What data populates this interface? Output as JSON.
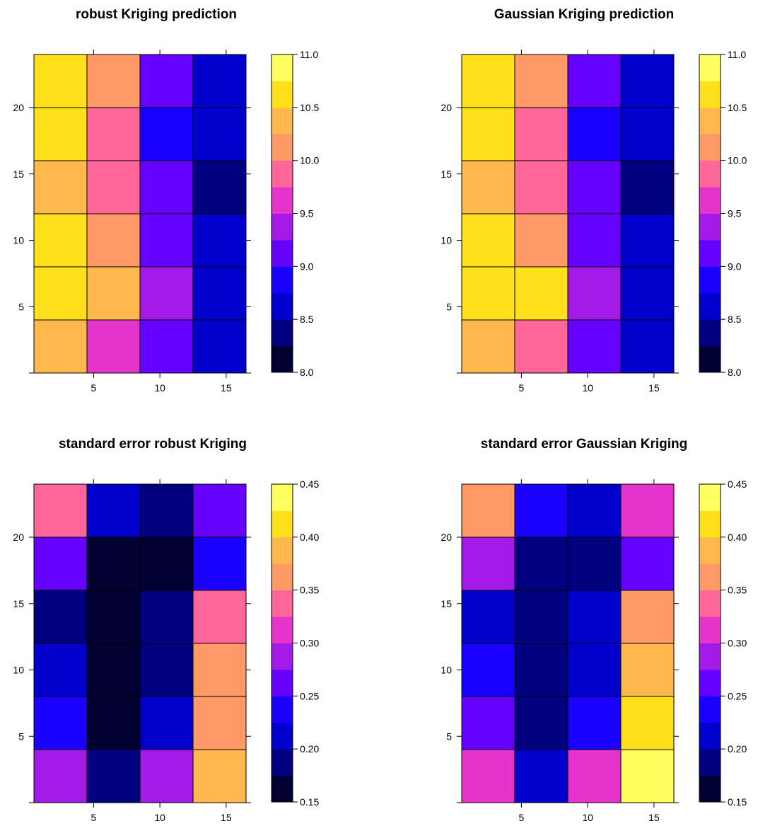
{
  "palette": [
    "#000033",
    "#000080",
    "#0000CC",
    "#1A00FF",
    "#6600FF",
    "#A31AE6",
    "#E633CC",
    "#FF6699",
    "#FF9966",
    "#FFB84D",
    "#FFE01A",
    "#FFFF60"
  ],
  "chart_data": [
    {
      "type": "heatmap",
      "title": "robust Kriging prediction",
      "x_ticks": [
        5,
        10,
        15
      ],
      "y_ticks": [
        5,
        10,
        15,
        20
      ],
      "colorbar": {
        "min": 8.0,
        "max": 11.0,
        "step": 0.25,
        "labels": [
          "8.0",
          "8.5",
          "9.0",
          "9.5",
          "10.0",
          "10.5",
          "11.0"
        ]
      },
      "columns_x": [
        2.5,
        6.5,
        10.5,
        14.5
      ],
      "rows_y": [
        22,
        18,
        14,
        10,
        6,
        2
      ],
      "values": [
        [
          10.6,
          10.1,
          9.1,
          8.7
        ],
        [
          10.6,
          9.9,
          8.9,
          8.7
        ],
        [
          10.4,
          9.9,
          9.1,
          8.4
        ],
        [
          10.6,
          10.1,
          9.1,
          8.7
        ],
        [
          10.6,
          10.4,
          9.4,
          8.7
        ],
        [
          10.4,
          9.6,
          9.1,
          8.7
        ]
      ]
    },
    {
      "type": "heatmap",
      "title": "Gaussian Kriging prediction",
      "x_ticks": [
        5,
        10,
        15
      ],
      "y_ticks": [
        5,
        10,
        15,
        20
      ],
      "colorbar": {
        "min": 8.0,
        "max": 11.0,
        "step": 0.25,
        "labels": [
          "8.0",
          "8.5",
          "9.0",
          "9.5",
          "10.0",
          "10.5",
          "11.0"
        ]
      },
      "columns_x": [
        2.5,
        6.5,
        10.5,
        14.5
      ],
      "rows_y": [
        22,
        18,
        14,
        10,
        6,
        2
      ],
      "values": [
        [
          10.6,
          10.1,
          9.1,
          8.7
        ],
        [
          10.6,
          9.9,
          8.9,
          8.7
        ],
        [
          10.4,
          9.9,
          9.1,
          8.4
        ],
        [
          10.6,
          10.1,
          9.1,
          8.7
        ],
        [
          10.6,
          10.6,
          9.4,
          8.7
        ],
        [
          10.4,
          9.9,
          9.1,
          8.7
        ]
      ]
    },
    {
      "type": "heatmap",
      "title": "standard error robust Kriging",
      "x_ticks": [
        5,
        10,
        15
      ],
      "y_ticks": [
        5,
        10,
        15,
        20
      ],
      "colorbar": {
        "min": 0.15,
        "max": 0.45,
        "step": 0.025,
        "labels": [
          "0.15",
          "0.20",
          "0.25",
          "0.30",
          "0.35",
          "0.40",
          "0.45"
        ]
      },
      "columns_x": [
        2.5,
        6.5,
        10.5,
        14.5
      ],
      "rows_y": [
        22,
        18,
        14,
        10,
        6,
        2
      ],
      "values": [
        [
          0.34,
          0.21,
          0.19,
          0.26
        ],
        [
          0.26,
          0.16,
          0.16,
          0.235
        ],
        [
          0.19,
          0.16,
          0.19,
          0.34
        ],
        [
          0.21,
          0.16,
          0.19,
          0.36
        ],
        [
          0.235,
          0.16,
          0.21,
          0.36
        ],
        [
          0.285,
          0.19,
          0.285,
          0.385
        ]
      ]
    },
    {
      "type": "heatmap",
      "title": "standard error Gaussian Kriging",
      "x_ticks": [
        5,
        10,
        15
      ],
      "y_ticks": [
        5,
        10,
        15,
        20
      ],
      "colorbar": {
        "min": 0.15,
        "max": 0.45,
        "step": 0.025,
        "labels": [
          "0.15",
          "0.20",
          "0.25",
          "0.30",
          "0.35",
          "0.40",
          "0.45"
        ]
      },
      "columns_x": [
        2.5,
        6.5,
        10.5,
        14.5
      ],
      "rows_y": [
        22,
        18,
        14,
        10,
        6,
        2
      ],
      "values": [
        [
          0.36,
          0.235,
          0.21,
          0.31
        ],
        [
          0.285,
          0.19,
          0.19,
          0.26
        ],
        [
          0.21,
          0.19,
          0.21,
          0.36
        ],
        [
          0.235,
          0.19,
          0.21,
          0.385
        ],
        [
          0.26,
          0.19,
          0.235,
          0.41
        ],
        [
          0.31,
          0.21,
          0.31,
          0.44
        ]
      ]
    }
  ]
}
